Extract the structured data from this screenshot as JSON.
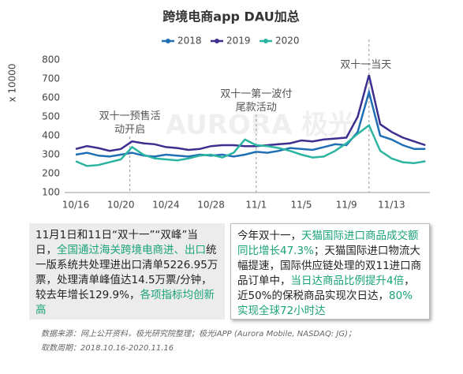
{
  "chart_data": {
    "type": "line",
    "title": "跨境电商app DAU加总",
    "y_label": "x 10000",
    "watermark": "AURORA 极光",
    "categories": [
      "10/16",
      null,
      null,
      null,
      "10/20",
      null,
      null,
      null,
      "10/24",
      null,
      null,
      null,
      "10/28",
      null,
      null,
      null,
      "11/1",
      null,
      null,
      null,
      "11/5",
      null,
      null,
      null,
      "11/9",
      null,
      null,
      null,
      "11/13",
      null,
      null,
      null
    ],
    "series": [
      {
        "name": "2018",
        "color": "#1f6fb5",
        "values": [
          300,
          310,
          295,
          290,
          300,
          310,
          295,
          290,
          300,
          295,
          290,
          300,
          295,
          300,
          290,
          300,
          315,
          310,
          320,
          335,
          330,
          325,
          340,
          355,
          350,
          420,
          630,
          400,
          380,
          350,
          330,
          330
        ]
      },
      {
        "name": "2019",
        "color": "#3b2f8f",
        "values": [
          330,
          345,
          335,
          320,
          330,
          370,
          360,
          355,
          340,
          335,
          325,
          330,
          345,
          350,
          350,
          345,
          345,
          350,
          355,
          360,
          375,
          370,
          380,
          385,
          390,
          500,
          720,
          460,
          420,
          390,
          370,
          350
        ]
      },
      {
        "name": "2020",
        "color": "#2bb5a0",
        "values": [
          265,
          240,
          245,
          260,
          275,
          340,
          300,
          280,
          275,
          270,
          280,
          295,
          300,
          285,
          310,
          380,
          350,
          345,
          335,
          320,
          300,
          285,
          290,
          320,
          360,
          410,
          455,
          320,
          280,
          260,
          255,
          265
        ]
      }
    ],
    "ylim": [
      100,
      800
    ],
    "yticks": [
      100,
      200,
      300,
      400,
      500,
      600,
      700,
      800
    ],
    "annotations": [
      {
        "text": "双十一预售活\n动开启",
        "index": 4.8
      },
      {
        "text": "双十一第一波付\n尾款活动",
        "index": 16
      },
      {
        "text": "双十一当天",
        "index": 26
      }
    ]
  },
  "boxes": [
    [
      {
        "text": "11月1日和11日“双十一”“双峰”当日，",
        "highlight": false
      },
      {
        "text": "全国通过海关跨境电商进、出口",
        "highlight": true
      },
      {
        "text": "统一版系统共处理进出口清单5226.95万票，处理清单峰值达14.5万票/分钟，较去年增长129.9%，",
        "highlight": false
      },
      {
        "text": "各项指标均创新高",
        "highlight": true
      }
    ],
    [
      {
        "text": "今年双十一，",
        "highlight": false
      },
      {
        "text": "天猫国际进口商品成交额同比增长47.3%",
        "highlight": true
      },
      {
        "text": "；天猫国际进口物流大幅提速，国际供应链处理的双11进口商品订单中，",
        "highlight": false
      },
      {
        "text": "当日达商品比例提升4倍",
        "highlight": true
      },
      {
        "text": "，近50%的保税商品实现次日达，",
        "highlight": false
      },
      {
        "text": "80%实现全球72小时达",
        "highlight": true
      }
    ]
  ],
  "footer": [
    "数据来源：网上公开资料，极光研究院整理；极光iAPP (Aurora Mobile, NASDAQ: JG)；",
    "取数周期：2018.10.16-2020.11.16"
  ]
}
